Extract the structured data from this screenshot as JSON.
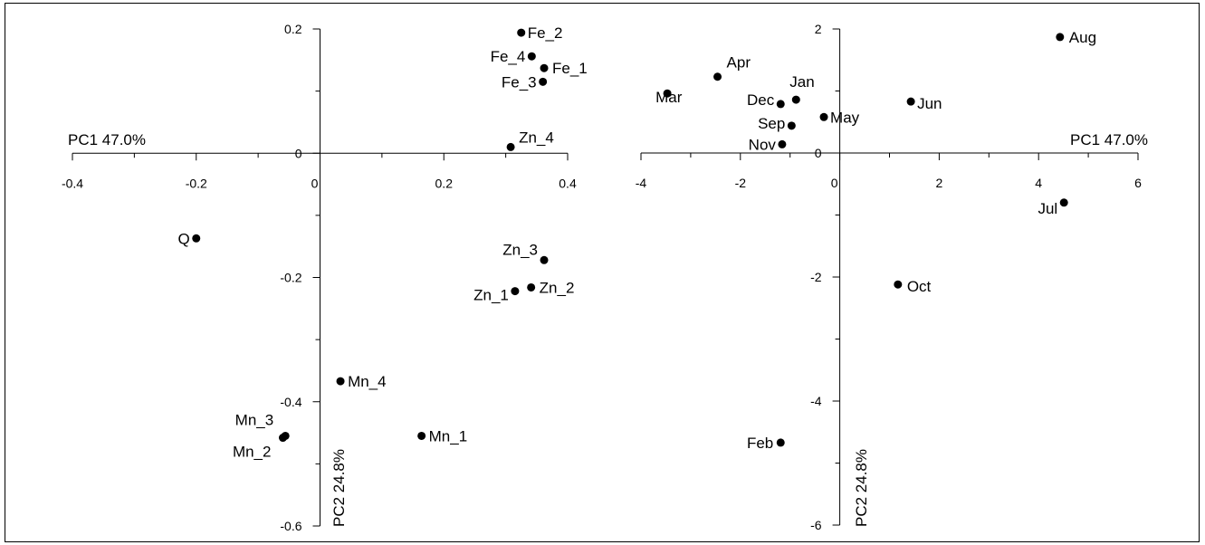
{
  "chart_data": [
    {
      "type": "scatter",
      "panel": "loadings",
      "xlabel": "PC1 47.0%",
      "ylabel": "PC2 24.8%",
      "xlim": [
        -0.4,
        0.4
      ],
      "ylim": [
        -0.6,
        0.2
      ],
      "xticks": [
        -0.4,
        -0.2,
        0,
        0.2,
        0.4
      ],
      "xtick_labels": [
        "-0.4",
        "-0.2",
        "0",
        "0.2",
        "0.4"
      ],
      "yticks": [
        0.2,
        0,
        -0.2,
        -0.4,
        -0.6
      ],
      "ytick_labels": [
        "0.2",
        "0",
        "-0.2",
        "-0.4",
        "-0.6"
      ],
      "points": [
        {
          "label": "Fe_2",
          "x": 0.325,
          "y": 0.194
        },
        {
          "label": "Fe_4",
          "x": 0.342,
          "y": 0.156
        },
        {
          "label": "Fe_1",
          "x": 0.362,
          "y": 0.137
        },
        {
          "label": "Fe_3",
          "x": 0.36,
          "y": 0.115
        },
        {
          "label": "Zn_4",
          "x": 0.308,
          "y": 0.01
        },
        {
          "label": "Zn_3",
          "x": 0.362,
          "y": -0.172
        },
        {
          "label": "Zn_2",
          "x": 0.341,
          "y": -0.216
        },
        {
          "label": "Zn_1",
          "x": 0.315,
          "y": -0.222
        },
        {
          "label": "Q",
          "x": -0.2,
          "y": -0.137
        },
        {
          "label": "Mn_4",
          "x": 0.033,
          "y": -0.367
        },
        {
          "label": "Mn_1",
          "x": 0.164,
          "y": -0.455
        },
        {
          "label": "Mn_3",
          "x": -0.056,
          "y": -0.455
        },
        {
          "label": "Mn_2",
          "x": -0.06,
          "y": -0.458
        }
      ]
    },
    {
      "type": "scatter",
      "panel": "scores",
      "xlabel": "PC1 47.0%",
      "ylabel": "PC2 24.8%",
      "xlim": [
        -4,
        6
      ],
      "ylim": [
        -6,
        2
      ],
      "xticks": [
        -4,
        -2,
        0,
        2,
        4,
        6
      ],
      "xtick_labels": [
        "-4",
        "-2",
        "0",
        "2",
        "4",
        "6"
      ],
      "yticks": [
        2,
        0,
        -2,
        -4,
        -6
      ],
      "ytick_labels": [
        "2",
        "0",
        "-2",
        "-4",
        "-6"
      ],
      "points": [
        {
          "label": "Aug",
          "x": 4.43,
          "y": 1.87
        },
        {
          "label": "Apr",
          "x": -2.46,
          "y": 1.23
        },
        {
          "label": "Mar",
          "x": -3.47,
          "y": 0.96
        },
        {
          "label": "Jan",
          "x": -0.88,
          "y": 0.86
        },
        {
          "label": "Dec",
          "x": -1.19,
          "y": 0.79
        },
        {
          "label": "Jun",
          "x": 1.43,
          "y": 0.83
        },
        {
          "label": "May",
          "x": -0.32,
          "y": 0.58
        },
        {
          "label": "Sep",
          "x": -0.97,
          "y": 0.44
        },
        {
          "label": "Nov",
          "x": -1.16,
          "y": 0.14
        },
        {
          "label": "Jul",
          "x": 4.51,
          "y": -0.8
        },
        {
          "label": "Oct",
          "x": 1.17,
          "y": -2.12
        },
        {
          "label": "Feb",
          "x": -1.19,
          "y": -4.67
        }
      ]
    }
  ]
}
